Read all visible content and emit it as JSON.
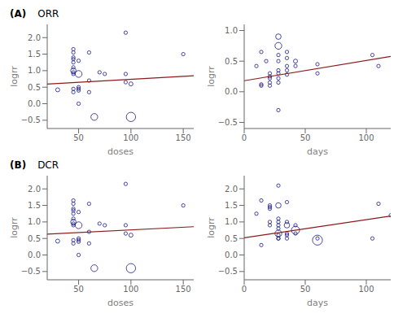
{
  "chart_data": [
    {
      "type": "scatter",
      "title": "ORR",
      "annotations": [
        "(A)"
      ],
      "xlabel": "doses",
      "ylabel": "logrr",
      "grid": false,
      "xlim": [
        20,
        160
      ],
      "ylim": [
        -0.75,
        2.4
      ],
      "xticks": [
        50,
        100,
        150
      ],
      "yticks": [
        {
          "value": -0.5,
          "label": "−0.5"
        },
        {
          "value": 0,
          "label": "0.0"
        },
        0.5,
        {
          "value": 1,
          "label": "1.0"
        },
        1.5,
        {
          "value": 2,
          "label": "2.0"
        }
      ],
      "series": [
        {
          "type": "scatter",
          "marker": "open_circle",
          "color": "#1a1a8c",
          "x": [
            30,
            45,
            45,
            45,
            45,
            45,
            45,
            45,
            45,
            45,
            45,
            45,
            50,
            50,
            50,
            50,
            50,
            50,
            60,
            60,
            60,
            65,
            70,
            75,
            95,
            95,
            95,
            100,
            100,
            150
          ],
          "values": [
            0.42,
            1.65,
            1.55,
            1.4,
            1.35,
            1.25,
            1.1,
            1.0,
            0.95,
            0.9,
            0.45,
            0.35,
            1.3,
            0.9,
            0.5,
            0.45,
            0.4,
            0.0,
            1.55,
            0.7,
            0.35,
            -0.4,
            0.95,
            0.9,
            2.15,
            0.9,
            0.65,
            0.6,
            -0.4,
            1.5
          ],
          "sizes": [
            25,
            18,
            18,
            18,
            18,
            18,
            18,
            45,
            18,
            18,
            18,
            18,
            18,
            70,
            18,
            18,
            18,
            18,
            18,
            18,
            18,
            70,
            18,
            18,
            18,
            18,
            18,
            25,
            130,
            18
          ]
        },
        {
          "type": "line",
          "color": "#8b1a1a",
          "x": [
            20,
            160
          ],
          "values": [
            0.596,
            0.848
          ]
        }
      ]
    },
    {
      "type": "scatter",
      "xlabel": "days",
      "ylabel": "logrr",
      "grid": false,
      "xlim": [
        0,
        120
      ],
      "ylim": [
        -0.6,
        1.1
      ],
      "xticks": [
        0,
        50,
        100
      ],
      "yticks": [
        {
          "value": -0.5,
          "label": "−0.5"
        },
        {
          "value": 0,
          "label": "0.0"
        },
        0.5,
        {
          "value": 1,
          "label": "1.0"
        }
      ],
      "series": [
        {
          "type": "scatter",
          "marker": "open_circle",
          "color": "#1a1a8c",
          "x": [
            10,
            14,
            14,
            14,
            18,
            21,
            21,
            21,
            21,
            21,
            28,
            28,
            28,
            28,
            28,
            28,
            28,
            28,
            28,
            35,
            35,
            35,
            35,
            35,
            42,
            42,
            60,
            60,
            105,
            110
          ],
          "values": [
            0.42,
            0.65,
            0.1,
            0.12,
            0.5,
            0.3,
            0.25,
            0.22,
            0.15,
            0.1,
            0.9,
            0.75,
            0.6,
            0.5,
            0.35,
            0.3,
            0.22,
            0.15,
            -0.3,
            0.65,
            0.55,
            0.42,
            0.35,
            0.28,
            0.5,
            0.42,
            0.45,
            0.3,
            0.6,
            0.42
          ],
          "sizes": [
            18,
            18,
            18,
            18,
            18,
            18,
            18,
            18,
            18,
            18,
            45,
            70,
            18,
            18,
            18,
            18,
            18,
            18,
            18,
            18,
            18,
            18,
            18,
            18,
            25,
            18,
            18,
            18,
            18,
            18
          ]
        },
        {
          "type": "line",
          "color": "#8b1a1a",
          "x": [
            0,
            120
          ],
          "values": [
            0.18,
            0.576
          ]
        }
      ]
    },
    {
      "type": "scatter",
      "title": "DCR",
      "annotations": [
        "(B)"
      ],
      "xlabel": "doses",
      "ylabel": "logrr",
      "grid": false,
      "xlim": [
        20,
        160
      ],
      "ylim": [
        -0.75,
        2.4
      ],
      "xticks": [
        50,
        100,
        150
      ],
      "yticks": [
        {
          "value": -0.5,
          "label": "−0.5"
        },
        {
          "value": 0,
          "label": "0.0"
        },
        0.5,
        {
          "value": 1,
          "label": "1.0"
        },
        1.5,
        {
          "value": 2,
          "label": "2.0"
        }
      ],
      "series": [
        {
          "type": "scatter",
          "marker": "open_circle",
          "color": "#1a1a8c",
          "x": [
            30,
            45,
            45,
            45,
            45,
            45,
            45,
            45,
            45,
            45,
            45,
            45,
            50,
            50,
            50,
            50,
            50,
            50,
            60,
            60,
            60,
            65,
            70,
            75,
            95,
            95,
            95,
            100,
            100,
            150
          ],
          "values": [
            0.42,
            1.65,
            1.55,
            1.4,
            1.35,
            1.25,
            1.1,
            1.0,
            0.95,
            0.9,
            0.45,
            0.35,
            1.3,
            0.9,
            0.5,
            0.45,
            0.4,
            0.0,
            1.55,
            0.7,
            0.35,
            -0.4,
            0.95,
            0.9,
            2.15,
            0.9,
            0.65,
            0.6,
            -0.4,
            1.5
          ],
          "sizes": [
            25,
            18,
            18,
            18,
            18,
            18,
            18,
            45,
            18,
            18,
            18,
            18,
            18,
            70,
            18,
            18,
            18,
            18,
            18,
            18,
            18,
            70,
            18,
            18,
            18,
            18,
            18,
            25,
            130,
            18
          ]
        },
        {
          "type": "line",
          "color": "#8b1a1a",
          "x": [
            20,
            160
          ],
          "values": [
            0.632,
            0.856
          ]
        }
      ]
    },
    {
      "type": "scatter",
      "xlabel": "days",
      "ylabel": "logrr",
      "grid": false,
      "xlim": [
        0,
        120
      ],
      "ylim": [
        -0.75,
        2.4
      ],
      "xticks": [
        0,
        50,
        100
      ],
      "yticks": [
        {
          "value": -0.5,
          "label": "−0.5"
        },
        {
          "value": 0,
          "label": "0.0"
        },
        0.5,
        {
          "value": 1,
          "label": "1.0"
        },
        1.5,
        {
          "value": 2,
          "label": "2.0"
        }
      ],
      "series": [
        {
          "type": "scatter",
          "marker": "open_circle",
          "color": "#1a1a8c",
          "x": [
            10,
            14,
            14,
            21,
            21,
            21,
            21,
            21,
            28,
            28,
            28,
            28,
            28,
            28,
            28,
            28,
            28,
            28,
            35,
            35,
            35,
            35,
            35,
            35,
            42,
            42,
            42,
            60,
            60,
            105,
            110,
            120
          ],
          "values": [
            1.25,
            1.65,
            0.3,
            1.5,
            1.45,
            1.4,
            1.0,
            0.9,
            2.1,
            1.5,
            1.1,
            1.0,
            0.9,
            0.8,
            0.65,
            0.6,
            0.5,
            0.5,
            1.6,
            1.0,
            0.9,
            0.65,
            0.6,
            0.5,
            0.9,
            0.75,
            0.65,
            0.5,
            0.45,
            0.5,
            1.55,
            1.2
          ],
          "sizes": [
            18,
            18,
            18,
            18,
            18,
            18,
            18,
            18,
            18,
            45,
            18,
            18,
            18,
            18,
            70,
            18,
            18,
            18,
            18,
            18,
            45,
            18,
            18,
            18,
            18,
            100,
            18,
            18,
            150,
            18,
            18,
            18
          ]
        },
        {
          "type": "line",
          "color": "#8b1a1a",
          "x": [
            0,
            120
          ],
          "values": [
            0.52,
            1.18
          ]
        }
      ]
    }
  ]
}
